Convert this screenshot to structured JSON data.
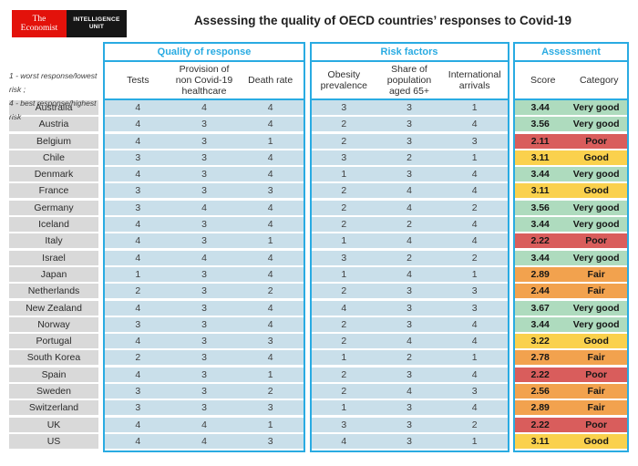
{
  "header": {
    "logo": {
      "brand_line1": "The",
      "brand_line2": "Economist",
      "unit_line1": "INTELLIGENCE",
      "unit_line2": "UNIT"
    }
  },
  "legend_note": {
    "line1": "1 - worst response/lowest risk ;",
    "line2": "4 - best response/highest risk"
  },
  "colors": {
    "accent_cyan": "#29abe2",
    "economist_red": "#e3120b",
    "logo_black": "#161616",
    "row_blue": "#c9dfea",
    "row_gray": "#d9d9d9",
    "category": {
      "Very good": "#aedbbe",
      "Good": "#fad14d",
      "Fair": "#f2a24e",
      "Poor": "#d95d5c"
    }
  },
  "chart_data": {
    "type": "table",
    "title": "Assessing the quality of OECD countries’ responses to Covid-19",
    "scale_note": "1 = worst response/lowest risk; 4 = best response/highest risk",
    "column_groups": [
      {
        "title": "Quality of response",
        "columns": [
          "Tests",
          "Provision of non Covid-19 healthcare",
          "Death rate"
        ]
      },
      {
        "title": "Risk factors",
        "columns": [
          "Obesity prevalence",
          "Share of population aged 65+",
          "International arrivals"
        ]
      },
      {
        "title": "Assessment",
        "columns": [
          "Score",
          "Category"
        ]
      }
    ],
    "rows": [
      {
        "country": "Australia",
        "quality": [
          4,
          4,
          4
        ],
        "risk": [
          3,
          3,
          1
        ],
        "score": "3.44",
        "category": "Very good"
      },
      {
        "country": "Austria",
        "quality": [
          4,
          3,
          4
        ],
        "risk": [
          2,
          3,
          4
        ],
        "score": "3.56",
        "category": "Very good"
      },
      {
        "country": "Belgium",
        "quality": [
          4,
          3,
          1
        ],
        "risk": [
          2,
          3,
          3
        ],
        "score": "2.11",
        "category": "Poor"
      },
      {
        "country": "Chile",
        "quality": [
          3,
          3,
          4
        ],
        "risk": [
          3,
          2,
          1
        ],
        "score": "3.11",
        "category": "Good"
      },
      {
        "country": "Denmark",
        "quality": [
          4,
          3,
          4
        ],
        "risk": [
          1,
          3,
          4
        ],
        "score": "3.44",
        "category": "Very good"
      },
      {
        "country": "France",
        "quality": [
          3,
          3,
          3
        ],
        "risk": [
          2,
          4,
          4
        ],
        "score": "3.11",
        "category": "Good"
      },
      {
        "country": "Germany",
        "quality": [
          3,
          4,
          4
        ],
        "risk": [
          2,
          4,
          2
        ],
        "score": "3.56",
        "category": "Very good"
      },
      {
        "country": "Iceland",
        "quality": [
          4,
          3,
          4
        ],
        "risk": [
          2,
          2,
          4
        ],
        "score": "3.44",
        "category": "Very good"
      },
      {
        "country": "Italy",
        "quality": [
          4,
          3,
          1
        ],
        "risk": [
          1,
          4,
          4
        ],
        "score": "2.22",
        "category": "Poor"
      },
      {
        "country": "Israel",
        "quality": [
          4,
          4,
          4
        ],
        "risk": [
          3,
          2,
          2
        ],
        "score": "3.44",
        "category": "Very good"
      },
      {
        "country": "Japan",
        "quality": [
          1,
          3,
          4
        ],
        "risk": [
          1,
          4,
          1
        ],
        "score": "2.89",
        "category": "Fair"
      },
      {
        "country": "Netherlands",
        "quality": [
          2,
          3,
          2
        ],
        "risk": [
          2,
          3,
          3
        ],
        "score": "2.44",
        "category": "Fair"
      },
      {
        "country": "New Zealand",
        "quality": [
          4,
          3,
          4
        ],
        "risk": [
          4,
          3,
          3
        ],
        "score": "3.67",
        "category": "Very good"
      },
      {
        "country": "Norway",
        "quality": [
          3,
          3,
          4
        ],
        "risk": [
          2,
          3,
          4
        ],
        "score": "3.44",
        "category": "Very good"
      },
      {
        "country": "Portugal",
        "quality": [
          4,
          3,
          3
        ],
        "risk": [
          2,
          4,
          4
        ],
        "score": "3.22",
        "category": "Good"
      },
      {
        "country": "South Korea",
        "quality": [
          2,
          3,
          4
        ],
        "risk": [
          1,
          2,
          1
        ],
        "score": "2.78",
        "category": "Fair"
      },
      {
        "country": "Spain",
        "quality": [
          4,
          3,
          1
        ],
        "risk": [
          2,
          3,
          4
        ],
        "score": "2.22",
        "category": "Poor"
      },
      {
        "country": "Sweden",
        "quality": [
          3,
          3,
          2
        ],
        "risk": [
          2,
          4,
          3
        ],
        "score": "2.56",
        "category": "Fair"
      },
      {
        "country": "Switzerland",
        "quality": [
          3,
          3,
          3
        ],
        "risk": [
          1,
          3,
          4
        ],
        "score": "2.89",
        "category": "Fair"
      },
      {
        "country": "UK",
        "quality": [
          4,
          4,
          1
        ],
        "risk": [
          3,
          3,
          2
        ],
        "score": "2.22",
        "category": "Poor"
      },
      {
        "country": "US",
        "quality": [
          4,
          4,
          3
        ],
        "risk": [
          4,
          3,
          1
        ],
        "score": "3.11",
        "category": "Good"
      }
    ]
  }
}
